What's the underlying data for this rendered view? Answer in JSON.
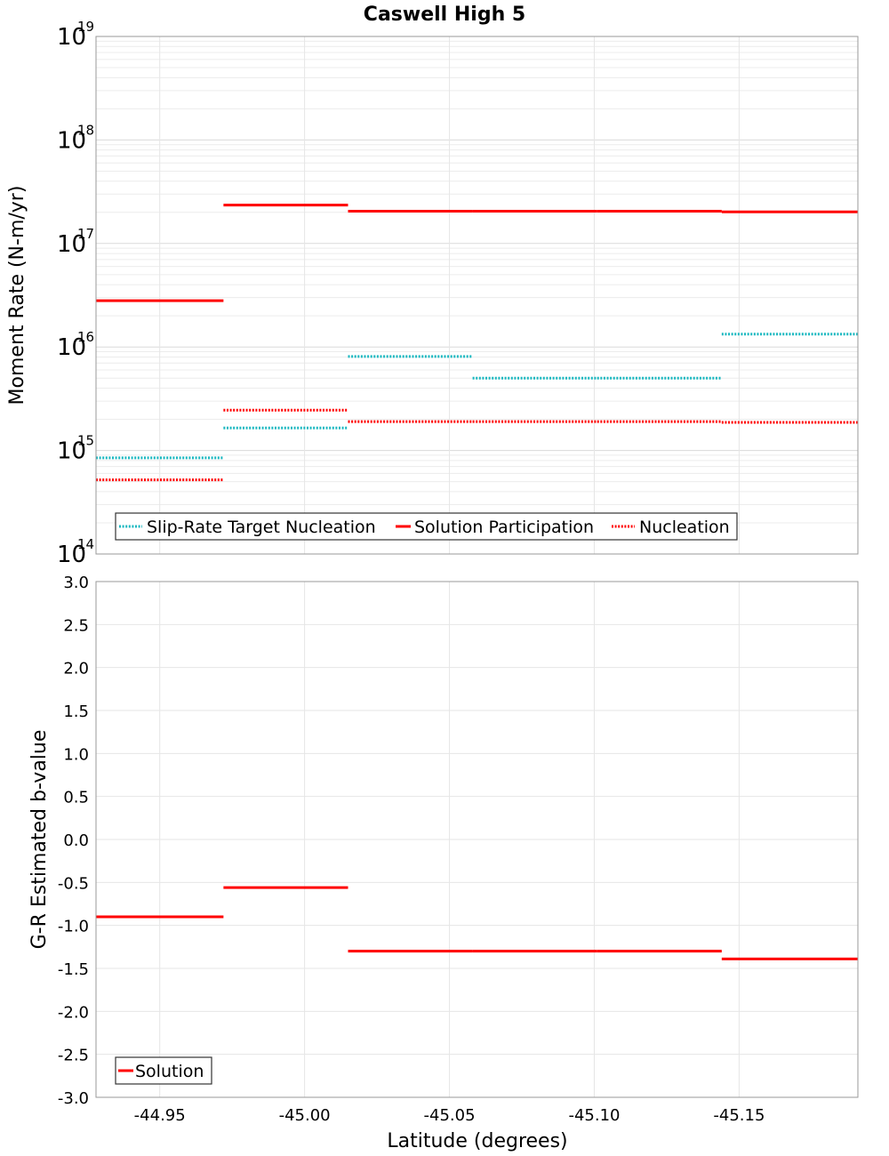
{
  "chart_data": [
    {
      "type": "line",
      "title": "Caswell High 5",
      "xlabel": "",
      "ylabel": "Moment Rate (N-m/yr)",
      "yscale": "log",
      "ylim": [
        100000000000000.0,
        1e+19
      ],
      "xlim": [
        -44.928,
        -45.191
      ],
      "ytick_base": "10",
      "ytick_exponents": [
        "14",
        "15",
        "16",
        "17",
        "18",
        "19"
      ],
      "grid": true,
      "legend_position": "bottom-left",
      "series": [
        {
          "name": "Slip-Rate Target Nucleation",
          "color": "#1ab8c0",
          "style": "dotted",
          "segments": [
            {
              "x0": -44.928,
              "x1": -44.972,
              "y": 850000000000000.0
            },
            {
              "x0": -44.972,
              "x1": -45.015,
              "y": 1650000000000000.0
            },
            {
              "x0": -45.015,
              "x1": -45.058,
              "y": 8100000000000000.0
            },
            {
              "x0": -45.058,
              "x1": -45.101,
              "y": 5000000000000000.0
            },
            {
              "x0": -45.101,
              "x1": -45.144,
              "y": 5000000000000000.0
            },
            {
              "x0": -45.144,
              "x1": -45.191,
              "y": 1.33e+16
            }
          ]
        },
        {
          "name": "Solution Participation",
          "color": "#ff0000",
          "style": "solid",
          "segments": [
            {
              "x0": -44.928,
              "x1": -44.972,
              "y": 2.8e+16
            },
            {
              "x0": -44.972,
              "x1": -45.015,
              "y": 2.35e+17
            },
            {
              "x0": -45.015,
              "x1": -45.058,
              "y": 2.05e+17
            },
            {
              "x0": -45.058,
              "x1": -45.101,
              "y": 2.05e+17
            },
            {
              "x0": -45.101,
              "x1": -45.144,
              "y": 2.05e+17
            },
            {
              "x0": -45.144,
              "x1": -45.191,
              "y": 2.02e+17
            }
          ]
        },
        {
          "name": "Nucleation",
          "color": "#ff0000",
          "style": "dotted",
          "segments": [
            {
              "x0": -44.928,
              "x1": -44.972,
              "y": 520000000000000.0
            },
            {
              "x0": -44.972,
              "x1": -45.015,
              "y": 2450000000000000.0
            },
            {
              "x0": -45.015,
              "x1": -45.058,
              "y": 1900000000000000.0
            },
            {
              "x0": -45.058,
              "x1": -45.101,
              "y": 1900000000000000.0
            },
            {
              "x0": -45.101,
              "x1": -45.144,
              "y": 1900000000000000.0
            },
            {
              "x0": -45.144,
              "x1": -45.191,
              "y": 1870000000000000.0
            }
          ]
        }
      ]
    },
    {
      "type": "line",
      "title": "",
      "xlabel": "Latitude (degrees)",
      "ylabel": "G-R Estimated b-value",
      "ylim": [
        -3.0,
        3.0
      ],
      "xlim": [
        -44.928,
        -45.191
      ],
      "yticks": [
        "-3.0",
        "-2.5",
        "-2.0",
        "-1.5",
        "-1.0",
        "-0.5",
        "0.0",
        "0.5",
        "1.0",
        "1.5",
        "2.0",
        "2.5",
        "3.0"
      ],
      "xticks": [
        "-44.95",
        "-45.00",
        "-45.05",
        "-45.10",
        "-45.15"
      ],
      "grid": true,
      "legend_position": "bottom-left",
      "series": [
        {
          "name": "Solution",
          "color": "#ff0000",
          "style": "solid",
          "segments": [
            {
              "x0": -44.928,
              "x1": -44.972,
              "y": -0.9
            },
            {
              "x0": -44.972,
              "x1": -45.015,
              "y": -0.56
            },
            {
              "x0": -45.015,
              "x1": -45.058,
              "y": -1.3
            },
            {
              "x0": -45.058,
              "x1": -45.101,
              "y": -1.3
            },
            {
              "x0": -45.101,
              "x1": -45.144,
              "y": -1.3
            },
            {
              "x0": -45.144,
              "x1": -45.191,
              "y": -1.39
            }
          ]
        }
      ]
    }
  ]
}
